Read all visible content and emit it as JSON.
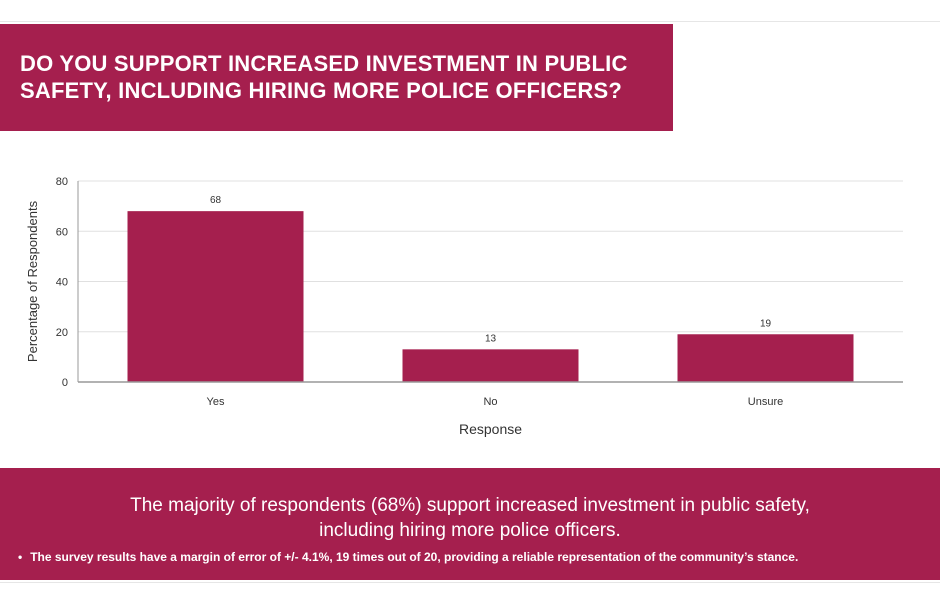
{
  "colors": {
    "accent": "#a51f4e",
    "bar": "#a51f4e",
    "text_light": "#ffffff",
    "grid": "#e0e0e0",
    "axis_text": "#333333"
  },
  "header": {
    "title": "DO YOU SUPPORT INCREASED INVESTMENT IN PUBLIC SAFETY, INCLUDING HIRING MORE POLICE OFFICERS?"
  },
  "chart_data": {
    "type": "bar",
    "categories": [
      "Yes",
      "No",
      "Unsure"
    ],
    "values": [
      68,
      13,
      19
    ],
    "data_labels": [
      "68",
      "13",
      "19"
    ],
    "xlabel": "Response",
    "ylabel": "Percentage of Respondents",
    "ylim": [
      0,
      80
    ],
    "yticks": [
      0,
      20,
      40,
      60,
      80
    ],
    "grid": true,
    "legend": "none"
  },
  "footer": {
    "summary": "The majority of respondents (68%) support increased investment in public safety, including hiring more police officers.",
    "bullet": "•",
    "note": "The survey results have a margin of error of +/- 4.1%, 19 times out of 20, providing a reliable representation of the community’s stance."
  }
}
